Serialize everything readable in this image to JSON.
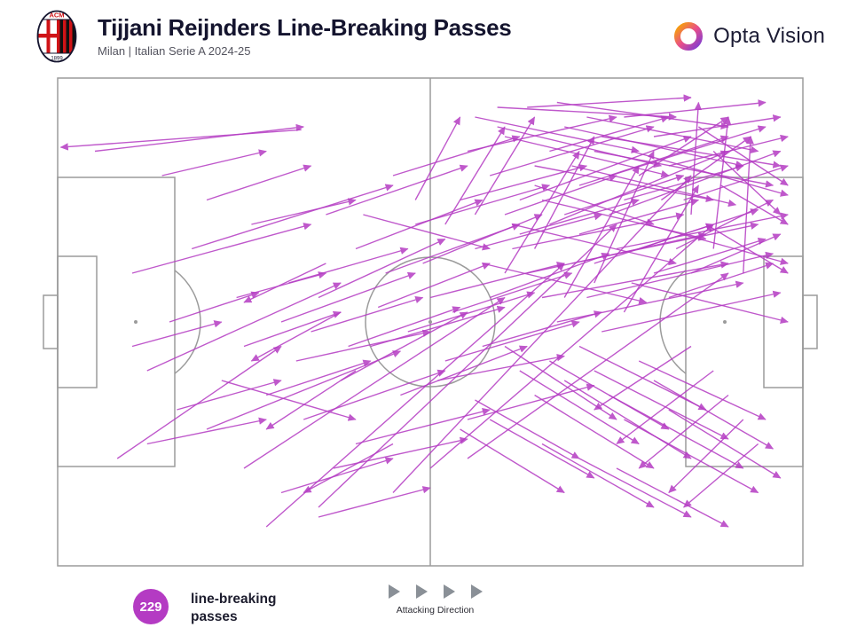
{
  "header": {
    "title": "Tijjani Reijnders Line-Breaking Passes",
    "subtitle": "Milan | Italian Serie A 2024-25",
    "crest_top": "ACM",
    "crest_bottom": "1899",
    "brand": {
      "name": "Opta Vision"
    }
  },
  "footer": {
    "count_badge": "229",
    "label_line1": "line-breaking",
    "label_line2": "passes",
    "attacking_direction_label": "Attacking Direction"
  },
  "colors": {
    "arrow": "#b43bc3",
    "badge": "#b43bc3",
    "pitch_line": "#9b9b9b",
    "title": "#14142e",
    "direction_arrow": "#8a9097",
    "crest_red": "#d01317",
    "crest_dark": "#15152f"
  },
  "chart_data": {
    "type": "scatter",
    "subtype": "pass_arrows",
    "mark": "arrow",
    "title": "Tijjani Reijnders Line-Breaking Passes",
    "subtitle": "Milan | Italian Serie A 2024-25",
    "total_passes": 229,
    "attacking_direction": "left-to-right",
    "coordinate_system": "percent of pitch; x: 0 = own goal line, 100 = opponent goal line; y: 0 = top touchline, 100 = bottom touchline; arrows = [x1,y1,x2,y2] (estimated from plot)",
    "arrows": [
      [
        8,
        78,
        30,
        55
      ],
      [
        10,
        40,
        34,
        30
      ],
      [
        12,
        60,
        38,
        42
      ],
      [
        5,
        15,
        33,
        10
      ],
      [
        18,
        35,
        45,
        22
      ],
      [
        20,
        72,
        46,
        56
      ],
      [
        15,
        50,
        27,
        44
      ],
      [
        22,
        62,
        40,
        70
      ],
      [
        32.7,
        10.6,
        0.4,
        14.2
      ],
      [
        28,
        92,
        68,
        38
      ],
      [
        35,
        88,
        75,
        30
      ],
      [
        25,
        80,
        60,
        45
      ],
      [
        30,
        50,
        48,
        40
      ],
      [
        32,
        58,
        50,
        52
      ],
      [
        35,
        45,
        52,
        33
      ],
      [
        38,
        62,
        55,
        48
      ],
      [
        40,
        35,
        57,
        25
      ],
      [
        36,
        28,
        55,
        18
      ],
      [
        42,
        55,
        60,
        47
      ],
      [
        44,
        40,
        62,
        30
      ],
      [
        33,
        70,
        52,
        60
      ],
      [
        46,
        65,
        63,
        55
      ],
      [
        40,
        75,
        58,
        68
      ],
      [
        37,
        80,
        55,
        74
      ],
      [
        45,
        20,
        62,
        12
      ],
      [
        48,
        30,
        66,
        22
      ],
      [
        50,
        45,
        68,
        38
      ],
      [
        52,
        58,
        70,
        50
      ],
      [
        47,
        52,
        64,
        44
      ],
      [
        43,
        47,
        58,
        38
      ],
      [
        39,
        55,
        54,
        47
      ],
      [
        41,
        28,
        58,
        35
      ],
      [
        49,
        38,
        65,
        28
      ],
      [
        53,
        48,
        69,
        40
      ],
      [
        31,
        42,
        47,
        35
      ],
      [
        34,
        52,
        49,
        45
      ],
      [
        51,
        62,
        68,
        57
      ],
      [
        55,
        70,
        72,
        63
      ],
      [
        56,
        35,
        73,
        28
      ],
      [
        54,
        25,
        71,
        18
      ],
      [
        58,
        45,
        74,
        36
      ],
      [
        57,
        55,
        73,
        48
      ],
      [
        55,
        15,
        75,
        8
      ],
      [
        58,
        20,
        80,
        10
      ],
      [
        60,
        12,
        82,
        20
      ],
      [
        62,
        25,
        85,
        12
      ],
      [
        64,
        18,
        88,
        25
      ],
      [
        66,
        30,
        90,
        15
      ],
      [
        68,
        10,
        92,
        18
      ],
      [
        70,
        22,
        95,
        10
      ],
      [
        72,
        15,
        96,
        22
      ],
      [
        74,
        28,
        97,
        15
      ],
      [
        61,
        35,
        84,
        28
      ],
      [
        63,
        40,
        87,
        32
      ],
      [
        65,
        45,
        90,
        38
      ],
      [
        67,
        50,
        92,
        42
      ],
      [
        69,
        38,
        94,
        30
      ],
      [
        71,
        45,
        96,
        36
      ],
      [
        73,
        52,
        97,
        44
      ],
      [
        75,
        35,
        98,
        28
      ],
      [
        77,
        42,
        98,
        50
      ],
      [
        79,
        30,
        98,
        38
      ],
      [
        56,
        8,
        78,
        15
      ],
      [
        59,
        6,
        83,
        8
      ],
      [
        76,
        8,
        95,
        5
      ],
      [
        80,
        12,
        97,
        8
      ],
      [
        82,
        18,
        98,
        12
      ],
      [
        84,
        25,
        98,
        18
      ],
      [
        86,
        10,
        98,
        22
      ],
      [
        88,
        15,
        97,
        28
      ],
      [
        78,
        20,
        90,
        8
      ],
      [
        81,
        25,
        93,
        12
      ],
      [
        83,
        35,
        96,
        25
      ],
      [
        85,
        40,
        97,
        32
      ],
      [
        87,
        30,
        98,
        40
      ],
      [
        89,
        22,
        98,
        30
      ],
      [
        60,
        28,
        75,
        20
      ],
      [
        62,
        32,
        78,
        25
      ],
      [
        64,
        22,
        80,
        30
      ],
      [
        66,
        15,
        82,
        8
      ],
      [
        68,
        28,
        84,
        20
      ],
      [
        70,
        32,
        86,
        25
      ],
      [
        72,
        38,
        88,
        30
      ],
      [
        74,
        20,
        90,
        12
      ],
      [
        76,
        25,
        92,
        18
      ],
      [
        78,
        35,
        94,
        27
      ],
      [
        80,
        40,
        95,
        33
      ],
      [
        82,
        45,
        96,
        38
      ],
      [
        88,
        35,
        90,
        8
      ],
      [
        92,
        40,
        93,
        12
      ],
      [
        85,
        28,
        86,
        5
      ],
      [
        45,
        85,
        85,
        20
      ],
      [
        50,
        80,
        88,
        30
      ],
      [
        55,
        78,
        90,
        40
      ],
      [
        67,
        5,
        90,
        10
      ],
      [
        71,
        8,
        94,
        15
      ],
      [
        63,
        6,
        85,
        4
      ],
      [
        59,
        10,
        81,
        18
      ],
      [
        73,
        12,
        97,
        18
      ],
      [
        77,
        15,
        98,
        24
      ],
      [
        69,
        18,
        91,
        26
      ],
      [
        65,
        25,
        87,
        33
      ],
      [
        61,
        30,
        83,
        38
      ],
      [
        57,
        38,
        79,
        46
      ],
      [
        60,
        55,
        75,
        70
      ],
      [
        62,
        60,
        78,
        75
      ],
      [
        64,
        65,
        80,
        80
      ],
      [
        66,
        58,
        82,
        72
      ],
      [
        68,
        62,
        85,
        78
      ],
      [
        70,
        55,
        87,
        68
      ],
      [
        72,
        60,
        90,
        74
      ],
      [
        74,
        65,
        92,
        80
      ],
      [
        76,
        70,
        94,
        85
      ],
      [
        78,
        58,
        95,
        70
      ],
      [
        80,
        62,
        96,
        76
      ],
      [
        82,
        68,
        97,
        82
      ],
      [
        65,
        75,
        80,
        88
      ],
      [
        70,
        78,
        85,
        90
      ],
      [
        75,
        80,
        90,
        92
      ],
      [
        88,
        60,
        75,
        75
      ],
      [
        90,
        65,
        78,
        80
      ],
      [
        92,
        70,
        82,
        85
      ],
      [
        85,
        55,
        72,
        68
      ],
      [
        94,
        75,
        84,
        88
      ],
      [
        58,
        70,
        72,
        82
      ],
      [
        56,
        66,
        70,
        78
      ],
      [
        54,
        72,
        68,
        85
      ],
      [
        25,
        55,
        38,
        48
      ],
      [
        28,
        65,
        42,
        58
      ],
      [
        24,
        45,
        36,
        40
      ],
      [
        26,
        30,
        40,
        25
      ],
      [
        20,
        25,
        34,
        18
      ],
      [
        16,
        68,
        30,
        62
      ],
      [
        12,
        75,
        28,
        70
      ],
      [
        30,
        85,
        45,
        78
      ],
      [
        35,
        90,
        50,
        84
      ],
      [
        10,
        55,
        22,
        50
      ],
      [
        14,
        20,
        28,
        15
      ],
      [
        40,
        60,
        28,
        72
      ],
      [
        38,
        48,
        26,
        58
      ],
      [
        45,
        75,
        33,
        85
      ],
      [
        36,
        38,
        25,
        46
      ],
      [
        52,
        30,
        60,
        10
      ],
      [
        56,
        28,
        64,
        8
      ],
      [
        60,
        40,
        70,
        15
      ],
      [
        64,
        35,
        72,
        12
      ],
      [
        68,
        45,
        78,
        18
      ],
      [
        72,
        42,
        80,
        15
      ],
      [
        76,
        48,
        86,
        22
      ],
      [
        48,
        25,
        54,
        8
      ]
    ]
  }
}
